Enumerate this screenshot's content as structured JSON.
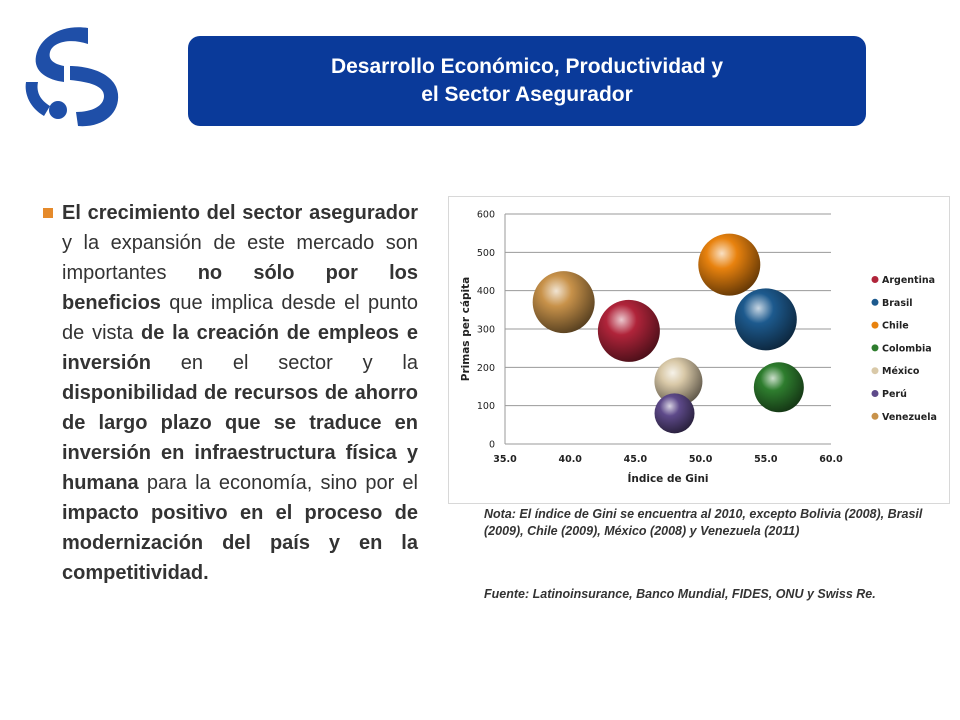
{
  "header": {
    "title_line1": "Desarrollo Económico, Productividad y",
    "title_line2": "el Sector Asegurador"
  },
  "body": {
    "segments": [
      {
        "text": "El crecimiento del sector asegurador",
        "bold": true
      },
      {
        "text": " y la expansión de este mercado son importantes ",
        "bold": false
      },
      {
        "text": "no sólo por los beneficios",
        "bold": true
      },
      {
        "text": " que implica desde el punto de vista ",
        "bold": false
      },
      {
        "text": "de la creación de empleos e inversión",
        "bold": true
      },
      {
        "text": " en el sector y la ",
        "bold": false
      },
      {
        "text": "disponibilidad de recursos de ahorro de largo plazo que se traduce en inversión en infraestructura física y humana",
        "bold": true
      },
      {
        "text": " para la economía, sino por el ",
        "bold": false
      },
      {
        "text": "impacto positivo en el proceso de modernización del país y en la competitividad.",
        "bold": true
      }
    ]
  },
  "footnotes": {
    "note": "Nota: El índice de Gini se encuentra al 2010, excepto Bolivia (2008), Brasil (2009), Chile (2009), México (2008) y Venezuela (2011)",
    "source": "Fuente: Latinoinsurance, Banco Mundial, FIDES, ONU y Swiss Re."
  },
  "colors": {
    "title_bg": "#0a3a9a",
    "logo": "#1f4fa8",
    "bullet": "#e58a2b"
  },
  "chart_data": {
    "type": "scatter",
    "subtype": "bubble",
    "xlabel": "Índice de Gini",
    "ylabel": "Primas per cápita",
    "xlim": [
      35.0,
      60.0
    ],
    "ylim": [
      0,
      600
    ],
    "xticks": [
      "35.0",
      "40.0",
      "45.0",
      "50.0",
      "55.0",
      "60.0"
    ],
    "yticks": [
      "0",
      "100",
      "200",
      "300",
      "400",
      "500",
      "600"
    ],
    "grid": "horizontal",
    "legend_position": "right",
    "series": [
      {
        "name": "Argentina",
        "x": 44.5,
        "y": 295,
        "color": "#b0243a"
      },
      {
        "name": "Brasil",
        "x": 55.0,
        "y": 325,
        "color": "#1d5a8e"
      },
      {
        "name": "Chile",
        "x": 52.2,
        "y": 468,
        "color": "#e8820e"
      },
      {
        "name": "Colombia",
        "x": 56.0,
        "y": 148,
        "color": "#2e7d2e"
      },
      {
        "name": "México",
        "x": 48.3,
        "y": 163,
        "color": "#d9c9a8"
      },
      {
        "name": "Perú",
        "x": 48.0,
        "y": 80,
        "color": "#5e4a8a"
      },
      {
        "name": "Venezuela",
        "x": 39.5,
        "y": 370,
        "color": "#c8924a"
      }
    ]
  }
}
